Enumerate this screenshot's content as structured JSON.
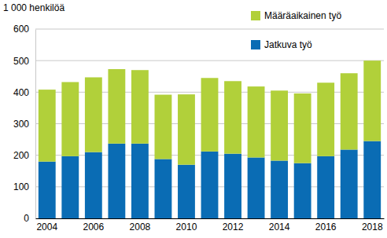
{
  "chart_data": {
    "type": "bar",
    "stacked": true,
    "grid": true,
    "legend": "top-right",
    "ylabel": "1 000 henkilöä",
    "categories": [
      "2004",
      null,
      "2006",
      null,
      "2008",
      null,
      "2010",
      null,
      "2012",
      null,
      "2014",
      null,
      "2016",
      null,
      "2018"
    ],
    "series": [
      {
        "name": "Jatkuva työ",
        "color": "#0a6cb4",
        "values": [
          180,
          197,
          210,
          237,
          237,
          188,
          170,
          212,
          205,
          193,
          183,
          175,
          197,
          218,
          245
        ]
      },
      {
        "name": "Määräaikainen työ",
        "color": "#b1d03a",
        "values": [
          228,
          235,
          237,
          236,
          233,
          204,
          223,
          233,
          230,
          225,
          222,
          221,
          233,
          242,
          255
        ]
      }
    ],
    "ylim": [
      0,
      600
    ],
    "yticks": [
      0,
      100,
      200,
      300,
      400,
      500,
      600
    ]
  }
}
